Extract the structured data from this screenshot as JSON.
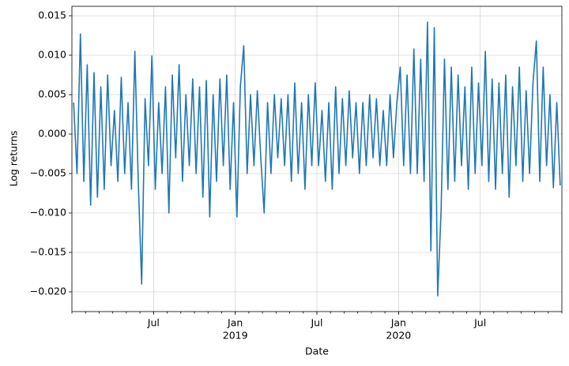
{
  "chart_data": {
    "type": "line",
    "xlabel": "Date",
    "ylabel": "Log returns",
    "color": "#1f77b4",
    "grid": true,
    "x": [
      "2018-01",
      "2018-01",
      "2018-01",
      "2018-01",
      "2018-02",
      "2018-02",
      "2018-02",
      "2018-02",
      "2018-03",
      "2018-03",
      "2018-03",
      "2018-03",
      "2018-04",
      "2018-04",
      "2018-04",
      "2018-04",
      "2018-05",
      "2018-05",
      "2018-05",
      "2018-05",
      "2018-06",
      "2018-06",
      "2018-06",
      "2018-06",
      "2018-07",
      "2018-07",
      "2018-07",
      "2018-07",
      "2018-08",
      "2018-08",
      "2018-08",
      "2018-08",
      "2018-09",
      "2018-09",
      "2018-09",
      "2018-09",
      "2018-10",
      "2018-10",
      "2018-10",
      "2018-10",
      "2018-11",
      "2018-11",
      "2018-11",
      "2018-11",
      "2018-12",
      "2018-12",
      "2018-12",
      "2018-12",
      "2019-01",
      "2019-01",
      "2019-01",
      "2019-01",
      "2019-02",
      "2019-02",
      "2019-02",
      "2019-02",
      "2019-03",
      "2019-03",
      "2019-03",
      "2019-03",
      "2019-04",
      "2019-04",
      "2019-04",
      "2019-04",
      "2019-05",
      "2019-05",
      "2019-05",
      "2019-05",
      "2019-06",
      "2019-06",
      "2019-06",
      "2019-06",
      "2019-07",
      "2019-07",
      "2019-07",
      "2019-07",
      "2019-08",
      "2019-08",
      "2019-08",
      "2019-08",
      "2019-09",
      "2019-09",
      "2019-09",
      "2019-09",
      "2019-10",
      "2019-10",
      "2019-10",
      "2019-10",
      "2019-11",
      "2019-11",
      "2019-11",
      "2019-11",
      "2019-12",
      "2019-12",
      "2019-12",
      "2019-12",
      "2020-01",
      "2020-01",
      "2020-01",
      "2020-01",
      "2020-02",
      "2020-02",
      "2020-02",
      "2020-02",
      "2020-03",
      "2020-03",
      "2020-03",
      "2020-03",
      "2020-04",
      "2020-04",
      "2020-04",
      "2020-04",
      "2020-05",
      "2020-05",
      "2020-05",
      "2020-05",
      "2020-06",
      "2020-06",
      "2020-06",
      "2020-06",
      "2020-07",
      "2020-07",
      "2020-07",
      "2020-07",
      "2020-08",
      "2020-08",
      "2020-08",
      "2020-08",
      "2020-09",
      "2020-09",
      "2020-09",
      "2020-09",
      "2020-10",
      "2020-10",
      "2020-10",
      "2020-10",
      "2020-11",
      "2020-11",
      "2020-11",
      "2020-11",
      "2020-12",
      "2020-12",
      "2020-12",
      "2020-12"
    ],
    "values": [
      0.004,
      -0.005,
      0.0127,
      -0.006,
      0.0088,
      -0.009,
      0.0078,
      -0.008,
      0.006,
      -0.007,
      0.0075,
      -0.004,
      0.003,
      -0.006,
      0.0072,
      -0.005,
      0.004,
      -0.007,
      0.0105,
      -0.006,
      -0.019,
      0.0045,
      -0.004,
      0.0099,
      -0.007,
      0.004,
      -0.005,
      0.006,
      -0.01,
      0.0075,
      -0.003,
      0.0088,
      -0.006,
      0.005,
      -0.004,
      0.007,
      -0.005,
      0.006,
      -0.008,
      0.0068,
      -0.0105,
      0.005,
      -0.006,
      0.007,
      -0.004,
      0.0075,
      -0.007,
      0.004,
      -0.0105,
      0.006,
      0.0112,
      -0.005,
      0.005,
      -0.004,
      0.0055,
      -0.003,
      -0.01,
      0.004,
      -0.005,
      0.005,
      -0.003,
      0.0045,
      -0.004,
      0.005,
      -0.006,
      0.0065,
      -0.005,
      0.004,
      -0.007,
      0.005,
      -0.004,
      0.0065,
      -0.004,
      0.003,
      -0.006,
      0.004,
      -0.007,
      0.006,
      -0.005,
      0.0045,
      -0.004,
      0.0055,
      -0.003,
      0.004,
      -0.005,
      0.004,
      -0.004,
      0.005,
      -0.003,
      0.0045,
      -0.004,
      0.003,
      -0.004,
      0.005,
      -0.003,
      0.004,
      0.0085,
      -0.004,
      0.0075,
      -0.005,
      0.0108,
      -0.005,
      0.0095,
      -0.006,
      0.0142,
      -0.0148,
      0.0135,
      -0.0205,
      -0.0097,
      0.0095,
      -0.007,
      0.0085,
      -0.006,
      0.0075,
      -0.004,
      0.006,
      -0.007,
      0.0085,
      -0.005,
      0.0065,
      -0.004,
      0.0105,
      -0.006,
      0.007,
      -0.007,
      0.0065,
      -0.005,
      0.0075,
      -0.008,
      0.006,
      -0.004,
      0.0085,
      -0.006,
      0.0055,
      -0.005,
      0.0065,
      0.0118,
      -0.006,
      0.0085,
      -0.004,
      0.005,
      -0.0068,
      0.004,
      -0.0065
    ],
    "xlim": [
      "2018-01",
      "2020-12"
    ],
    "xticks": [
      {
        "value": "2018-07",
        "label": "Jul"
      },
      {
        "value": "2019-01",
        "label": "Jan",
        "year": "2019"
      },
      {
        "value": "2019-07",
        "label": "Jul"
      },
      {
        "value": "2020-01",
        "label": "Jan",
        "year": "2020"
      },
      {
        "value": "2020-07",
        "label": "Jul"
      }
    ],
    "ylim": [
      -0.0225,
      0.0162
    ],
    "yticks": [
      {
        "value": 0.015,
        "label": "0.015"
      },
      {
        "value": 0.01,
        "label": "0.010"
      },
      {
        "value": 0.005,
        "label": "0.005"
      },
      {
        "value": 0,
        "label": "0.000"
      },
      {
        "value": -0.005,
        "label": "−0.005"
      },
      {
        "value": -0.01,
        "label": "−0.010"
      },
      {
        "value": -0.015,
        "label": "−0.015"
      },
      {
        "value": -0.02,
        "label": "−0.020"
      }
    ]
  }
}
